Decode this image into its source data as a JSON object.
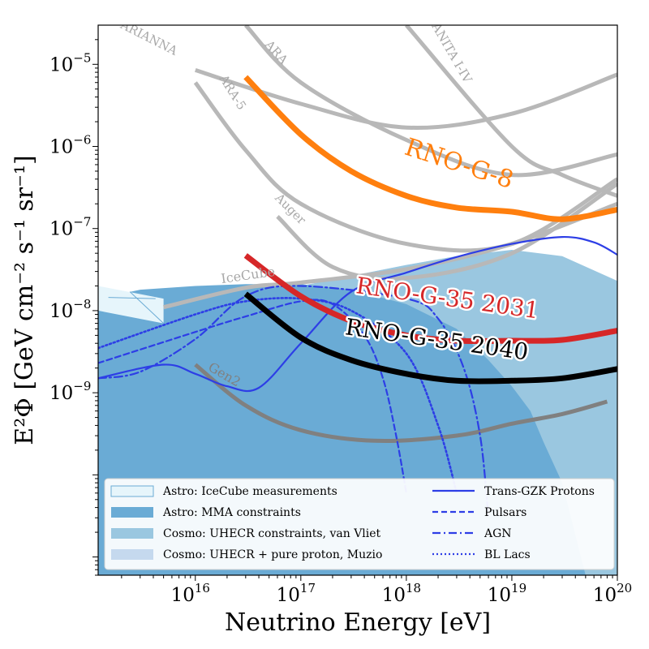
{
  "chart_data": {
    "type": "line",
    "title": "",
    "xlabel": "Neutrino Energy [eV]",
    "ylabel": "E²Φ [GeV cm⁻² s⁻¹ sr⁻¹]",
    "xscale": "log",
    "yscale": "log",
    "xlim": [
      1200000000000000.0,
      1e+20
    ],
    "ylim": [
      6e-12,
      3e-05
    ],
    "grid": false,
    "legend_position": "bottom",
    "x_tick_labels": [
      {
        "value": 1e+16,
        "base": "10",
        "exp": "16"
      },
      {
        "value": 1e+17,
        "base": "10",
        "exp": "17"
      },
      {
        "value": 1e+18,
        "base": "10",
        "exp": "18"
      },
      {
        "value": 1e+19,
        "base": "10",
        "exp": "19"
      },
      {
        "value": 1e+20,
        "base": "10",
        "exp": "20"
      }
    ],
    "y_tick_labels": [
      {
        "value": 1e-09,
        "base": "10",
        "exp": "−9"
      },
      {
        "value": 1e-08,
        "base": "10",
        "exp": "−8"
      },
      {
        "value": 1e-07,
        "base": "10",
        "exp": "−7"
      },
      {
        "value": 1e-06,
        "base": "10",
        "exp": "−6"
      },
      {
        "value": 1e-05,
        "base": "10",
        "exp": "−5"
      }
    ],
    "bands": [
      {
        "name": "Cosmo: UHECR + pure proton, Muzio",
        "color": "#c5d9ee",
        "upper": [
          [
            1200000000000000.0,
            1e-08
          ],
          [
            1e+16,
            1.5e-08
          ],
          [
            1e+17,
            2e-08
          ],
          [
            1e+18,
            3.6e-08
          ],
          [
            3e+18,
            4.6e-08
          ],
          [
            1e+19,
            3.4e-08
          ],
          [
            3e+19,
            2e-08
          ],
          [
            1e+20,
            8e-09
          ]
        ],
        "lower": [
          [
            1200000000000000.0,
            6e-12
          ],
          [
            1e+20,
            6e-12
          ]
        ]
      },
      {
        "name": "Cosmo: UHECR constraints, van Vliet",
        "color": "#9ac7e0",
        "upper": [
          [
            1200000000000000.0,
            1e-08
          ],
          [
            1e+16,
            1.5e-08
          ],
          [
            1e+17,
            2e-08
          ],
          [
            1e+18,
            3.6e-08
          ],
          [
            3e+18,
            4.6e-08
          ],
          [
            1e+19,
            5.5e-08
          ],
          [
            3e+19,
            4.6e-08
          ],
          [
            1e+20,
            2.3e-08
          ]
        ],
        "lower": [
          [
            1200000000000000.0,
            6e-12
          ],
          [
            1e+20,
            6e-12
          ]
        ]
      },
      {
        "name": "Astro: MMA constraints",
        "color": "#6aabd5",
        "upper": [
          [
            1200000000000000.0,
            1.4e-08
          ],
          [
            3000000000000000.0,
            1.8e-08
          ],
          [
            1e+16,
            2e-08
          ],
          [
            3e+16,
            2.1e-08
          ],
          [
            1e+17,
            2.1e-08
          ],
          [
            3e+17,
            1.8e-08
          ],
          [
            1e+18,
            1.2e-08
          ],
          [
            3e+18,
            6e-09
          ],
          [
            6e+18,
            2.5e-09
          ],
          [
            1e+19,
            1.2e-09
          ],
          [
            1.5e+19,
            6e-10
          ],
          [
            2e+19,
            2.5e-10
          ],
          [
            3e+19,
            8e-11
          ],
          [
            5e+19,
            6e-12
          ]
        ],
        "lower": [
          [
            1200000000000000.0,
            6e-12
          ],
          [
            5e+19,
            6e-12
          ]
        ]
      },
      {
        "name": "Astro: IceCube measurements",
        "color": "#e6f5fb",
        "upper": [
          [
            1200000000000000.0,
            2e-08
          ],
          [
            5000000000000000.0,
            1.4e-08
          ]
        ],
        "lower": [
          [
            1200000000000000.0,
            1e-08
          ],
          [
            5000000000000000.0,
            7e-09
          ]
        ]
      }
    ],
    "series": [
      {
        "name": "ARIANNA",
        "color": "#b8b8b8",
        "width": 5,
        "dash": "",
        "label_on_chart": true,
        "points": [
          [
            1e+16,
            8.5e-06
          ],
          [
            1e+17,
            3.3e-06
          ],
          [
            1e+18,
            1.7e-06
          ],
          [
            1e+19,
            2.5e-06
          ],
          [
            1e+20,
            7.5e-06
          ]
        ]
      },
      {
        "name": "ARA",
        "color": "#b8b8b8",
        "width": 5,
        "dash": "",
        "label_on_chart": true,
        "points": [
          [
            3e+16,
            3e-05
          ],
          [
            1e+17,
            6e-06
          ],
          [
            1e+18,
            1.2e-06
          ],
          [
            1e+19,
            4.5e-07
          ],
          [
            1e+20,
            8e-07
          ]
        ]
      },
      {
        "name": "ARA-5",
        "color": "#b8b8b8",
        "width": 5,
        "dash": "",
        "label_on_chart": true,
        "points": [
          [
            1e+16,
            6e-06
          ],
          [
            3e+16,
            9e-07
          ],
          [
            1e+17,
            2e-07
          ],
          [
            1e+18,
            6.5e-08
          ],
          [
            1e+19,
            6.5e-08
          ],
          [
            1e+20,
            4e-07
          ]
        ]
      },
      {
        "name": "ANITA I-IV",
        "color": "#b8b8b8",
        "width": 5,
        "dash": "",
        "label_on_chart": true,
        "points": [
          [
            1e+18,
            3e-05
          ],
          [
            1e+19,
            1e-06
          ],
          [
            3e+19,
            4.5e-07
          ],
          [
            1e+20,
            2.5e-07
          ]
        ]
      },
      {
        "name": "Auger",
        "color": "#b8b8b8",
        "width": 5,
        "dash": "",
        "label_on_chart": true,
        "points": [
          [
            6e+16,
            1.4e-07
          ],
          [
            2e+17,
            3.4e-08
          ],
          [
            1e+18,
            2.5e-08
          ],
          [
            1e+19,
            5e-08
          ],
          [
            1e+20,
            3.5e-07
          ]
        ]
      },
      {
        "name": "IceCube",
        "color": "#b8b8b8",
        "width": 5,
        "dash": "",
        "label_on_chart": true,
        "points": [
          [
            5000000000000000.0,
            1.1e-08
          ],
          [
            3e+16,
            1.9e-08
          ],
          [
            1e+17,
            2.2e-08
          ],
          [
            1e+18,
            3.2e-08
          ],
          [
            1e+19,
            6.5e-08
          ],
          [
            1e+20,
            2e-07
          ]
        ]
      },
      {
        "name": "Gen2",
        "color": "#808080",
        "width": 5,
        "dash": "",
        "label_on_chart": true,
        "points": [
          [
            1e+16,
            2.2e-09
          ],
          [
            3e+16,
            7e-10
          ],
          [
            1e+17,
            3.5e-10
          ],
          [
            5e+17,
            2.6e-10
          ],
          [
            3e+18,
            3e-10
          ],
          [
            1e+19,
            4.2e-10
          ],
          [
            3e+19,
            5.5e-10
          ],
          [
            8e+19,
            7.8e-10
          ]
        ]
      },
      {
        "name": "Trans-GZK Protons",
        "color": "#2d3ee6",
        "width": 2.2,
        "dash": "",
        "label_on_chart": false,
        "points": [
          [
            1200000000000000.0,
            1.5e-09
          ],
          [
            5000000000000000.0,
            2.2e-09
          ],
          [
            1e+16,
            1.7e-09
          ],
          [
            2e+16,
            1.2e-09
          ],
          [
            4e+16,
            1.15e-09
          ],
          [
            1e+17,
            4e-09
          ],
          [
            3e+17,
            1.7e-08
          ],
          [
            1e+18,
            2.9e-08
          ],
          [
            3e+18,
            4.5e-08
          ],
          [
            1e+19,
            6.5e-08
          ],
          [
            3e+19,
            7.9e-08
          ],
          [
            6e+19,
            6.8e-08
          ],
          [
            1e+20,
            4.8e-08
          ]
        ]
      },
      {
        "name": "Pulsars",
        "color": "#2d3ee6",
        "width": 2.2,
        "dash": "7,4",
        "label_on_chart": false,
        "points": [
          [
            1200000000000000.0,
            2.3e-09
          ],
          [
            1e+16,
            5.5e-09
          ],
          [
            3e+16,
            8.5e-09
          ],
          [
            1e+17,
            1.3e-08
          ],
          [
            2e+17,
            1.2e-08
          ],
          [
            4e+17,
            5e-09
          ],
          [
            6e+17,
            1.5e-09
          ],
          [
            8e+17,
            3e-10
          ],
          [
            1e+18,
            6e-11
          ]
        ]
      },
      {
        "name": "AGN",
        "color": "#2d3ee6",
        "width": 2.2,
        "dash": "10,4,2,4",
        "label_on_chart": false,
        "points": [
          [
            1200000000000000.0,
            1.5e-09
          ],
          [
            3000000000000000.0,
            1.8e-09
          ],
          [
            1e+16,
            4.5e-09
          ],
          [
            3e+16,
            1.5e-08
          ],
          [
            1e+17,
            2e-08
          ],
          [
            1e+18,
            1.4e-08
          ],
          [
            2e+18,
            8e-09
          ],
          [
            3.5e+18,
            2e-09
          ],
          [
            5e+18,
            3e-10
          ],
          [
            6e+18,
            3e-11
          ]
        ]
      },
      {
        "name": "BL Lacs",
        "color": "#2d3ee6",
        "width": 2.6,
        "dash": "2,3",
        "label_on_chart": false,
        "points": [
          [
            1200000000000000.0,
            3.5e-09
          ],
          [
            1e+16,
            9e-09
          ],
          [
            3e+16,
            1.3e-08
          ],
          [
            1e+17,
            1.4e-08
          ],
          [
            3e+17,
            1e-08
          ],
          [
            1e+18,
            3e-09
          ],
          [
            2e+18,
            4e-10
          ],
          [
            3e+18,
            6e-11
          ]
        ]
      },
      {
        "name": "RNO-G-8",
        "color": "#ff7f0e",
        "width": 7,
        "dash": "",
        "label_on_chart": true,
        "points": [
          [
            3e+16,
            7e-06
          ],
          [
            1e+17,
            1.4e-06
          ],
          [
            3e+17,
            5e-07
          ],
          [
            1e+18,
            2.5e-07
          ],
          [
            3e+18,
            1.8e-07
          ],
          [
            1e+19,
            1.6e-07
          ],
          [
            3e+19,
            1.3e-07
          ],
          [
            1e+20,
            1.7e-07
          ]
        ]
      },
      {
        "name": "RNO-G-35 2031",
        "color": "#d62728",
        "width": 7,
        "dash": "",
        "label_on_chart": true,
        "points": [
          [
            3e+16,
            4.7e-08
          ],
          [
            1e+17,
            1.5e-08
          ],
          [
            3e+17,
            7.5e-09
          ],
          [
            1e+18,
            5e-09
          ],
          [
            3e+18,
            4.3e-09
          ],
          [
            1e+19,
            4.3e-09
          ],
          [
            3e+19,
            4.4e-09
          ],
          [
            1e+20,
            5.7e-09
          ]
        ]
      },
      {
        "name": "RNO-G-35 2040",
        "color": "#000000",
        "width": 7,
        "dash": "",
        "label_on_chart": true,
        "points": [
          [
            3e+16,
            1.6e-08
          ],
          [
            1e+17,
            4.7e-09
          ],
          [
            3e+17,
            2.5e-09
          ],
          [
            1e+18,
            1.7e-09
          ],
          [
            3e+18,
            1.4e-09
          ],
          [
            1e+19,
            1.4e-09
          ],
          [
            3e+19,
            1.5e-09
          ],
          [
            1e+20,
            1.95e-09
          ]
        ]
      }
    ],
    "annotations": [
      {
        "text": "ARIANNA",
        "at": [
          3500000000000000.0,
          1.9e-05
        ],
        "angle": 27,
        "size": 15,
        "color": "#a8a8a8",
        "outline": false
      },
      {
        "text": "ARA",
        "at": [
          5.5e+16,
          1.3e-05
        ],
        "angle": 48,
        "size": 15,
        "color": "#a8a8a8",
        "outline": false
      },
      {
        "text": "ARA-5",
        "at": [
          2.1e+16,
          4.3e-06
        ],
        "angle": 58,
        "size": 15,
        "color": "#a8a8a8",
        "outline": false
      },
      {
        "text": "ANITA I-IV",
        "at": [
          2.5e+18,
          1.3e-05
        ],
        "angle": 60,
        "size": 15,
        "color": "#a8a8a8",
        "outline": false
      },
      {
        "text": "Auger",
        "at": [
          7.5e+16,
          1.6e-07
        ],
        "angle": 45,
        "size": 15,
        "color": "#a8a8a8",
        "outline": false
      },
      {
        "text": "IceCube",
        "at": [
          3.2e+16,
          2.4e-08
        ],
        "angle": -8,
        "size": 16,
        "color": "#a8a8a8",
        "outline": false
      },
      {
        "text": "Gen2",
        "at": [
          1.8e+16,
          1.5e-09
        ],
        "angle": 30,
        "size": 16,
        "color": "#808080",
        "outline": false
      },
      {
        "text": "RNO-G-8",
        "at": [
          3e+18,
          5e-07
        ],
        "angle": 18,
        "size": 30,
        "color": "#ff7f0e",
        "outline": false
      },
      {
        "text": "RNO-G-35 2031",
        "at": [
          2.4e+18,
          1.15e-08
        ],
        "angle": 8,
        "size": 28,
        "color": "#d62728",
        "outline": true
      },
      {
        "text": "RNO-G-35 2040",
        "at": [
          1.9e+18,
          3.6e-09
        ],
        "angle": 8,
        "size": 28,
        "color": "#000000",
        "outline": true
      }
    ],
    "legend": [
      {
        "label": "Astro: IceCube measurements",
        "type": "patch",
        "fill": "#e6f5fb",
        "stroke": "#6aabd5"
      },
      {
        "label": "Astro: MMA constraints",
        "type": "patch",
        "fill": "#6aabd5",
        "stroke": ""
      },
      {
        "label": "Cosmo: UHECR constraints, van Vliet",
        "type": "patch",
        "fill": "#9ac7e0",
        "stroke": ""
      },
      {
        "label": "Cosmo: UHECR + pure proton, Muzio",
        "type": "patch",
        "fill": "#c5d9ee",
        "stroke": ""
      },
      {
        "label": "Trans-GZK Protons",
        "type": "line",
        "color": "#2d3ee6",
        "dash": ""
      },
      {
        "label": "Pulsars",
        "type": "line",
        "color": "#2d3ee6",
        "dash": "7,4"
      },
      {
        "label": "AGN",
        "type": "line",
        "color": "#2d3ee6",
        "dash": "10,4,2,4"
      },
      {
        "label": "BL Lacs",
        "type": "line",
        "color": "#2d3ee6",
        "dash": "2,3"
      }
    ]
  }
}
